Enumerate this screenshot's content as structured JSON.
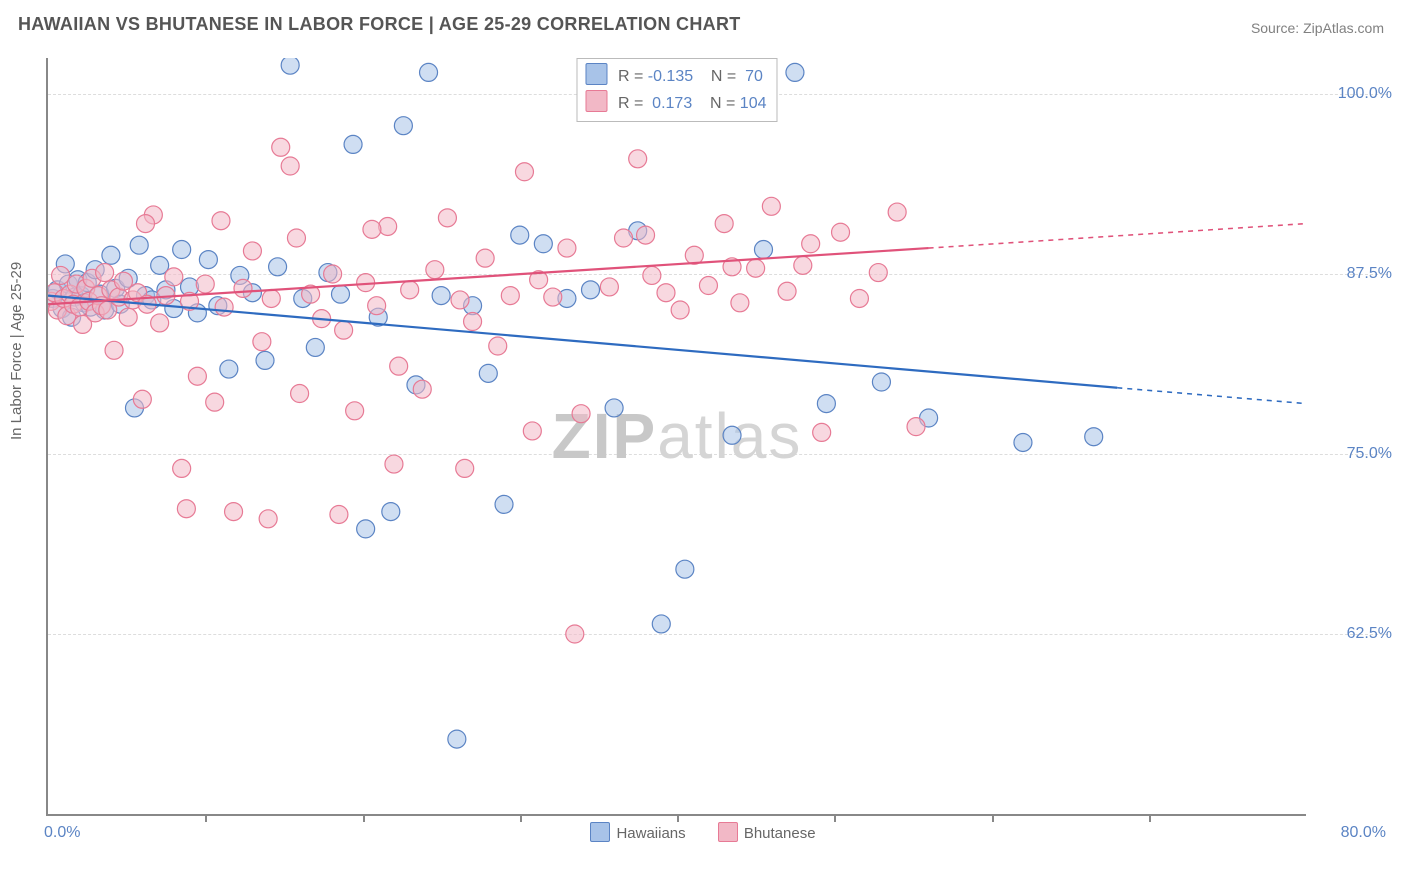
{
  "title": "HAWAIIAN VS BHUTANESE IN LABOR FORCE | AGE 25-29 CORRELATION CHART",
  "source_label": "Source: ",
  "source_name": "ZipAtlas.com",
  "y_axis_title": "In Labor Force | Age 25-29",
  "watermark_zip": "ZIP",
  "watermark_atlas": "atlas",
  "chart": {
    "type": "scatter",
    "plot_bg": "#ffffff",
    "border_color": "#888888",
    "grid_color": "#dddddd",
    "x_min": 0.0,
    "x_max": 80.0,
    "y_min": 50.0,
    "y_max": 102.5,
    "y_ticks": [
      62.5,
      75.0,
      87.5,
      100.0
    ],
    "y_tick_labels": [
      "62.5%",
      "75.0%",
      "87.5%",
      "100.0%"
    ],
    "x_tick_positions": [
      10,
      20,
      30,
      40,
      50,
      60,
      70
    ],
    "x_label_min": "0.0%",
    "x_label_max": "80.0%",
    "marker_radius": 9,
    "marker_opacity": 0.55,
    "marker_stroke_width": 1.2,
    "line_width": 2.2
  },
  "series": [
    {
      "name": "Hawaiians",
      "fill": "#a8c3e8",
      "stroke": "#5b84c4",
      "line_color": "#2e6bc0",
      "stats": {
        "r_label": "R =",
        "r_value": "-0.135",
        "n_label": "N =",
        "n_value": "70"
      },
      "regression": {
        "solid": {
          "x1": 0,
          "y1": 86.0,
          "x2": 68,
          "y2": 79.6
        },
        "dashed": {
          "x1": 68,
          "y1": 79.6,
          "x2": 80,
          "y2": 78.5
        }
      },
      "points": [
        [
          0.3,
          85.8
        ],
        [
          0.6,
          86.4
        ],
        [
          0.9,
          85.1
        ],
        [
          1.1,
          88.2
        ],
        [
          1.3,
          86.8
        ],
        [
          1.5,
          84.5
        ],
        [
          1.7,
          85.9
        ],
        [
          1.9,
          87.1
        ],
        [
          2.1,
          86.0
        ],
        [
          2.3,
          85.5
        ],
        [
          2.5,
          86.9
        ],
        [
          2.7,
          85.2
        ],
        [
          3.0,
          87.8
        ],
        [
          3.3,
          86.1
        ],
        [
          3.6,
          85.0
        ],
        [
          4.0,
          88.8
        ],
        [
          4.3,
          86.5
        ],
        [
          4.6,
          85.4
        ],
        [
          5.1,
          87.2
        ],
        [
          5.5,
          78.2
        ],
        [
          5.8,
          89.5
        ],
        [
          6.2,
          86.0
        ],
        [
          6.6,
          85.7
        ],
        [
          7.1,
          88.1
        ],
        [
          7.5,
          86.4
        ],
        [
          8.0,
          85.1
        ],
        [
          8.5,
          89.2
        ],
        [
          9.0,
          86.6
        ],
        [
          9.5,
          84.8
        ],
        [
          10.2,
          88.5
        ],
        [
          10.8,
          85.3
        ],
        [
          11.5,
          80.9
        ],
        [
          12.2,
          87.4
        ],
        [
          13.0,
          86.2
        ],
        [
          13.8,
          81.5
        ],
        [
          14.6,
          88.0
        ],
        [
          15.4,
          102.0
        ],
        [
          16.2,
          85.8
        ],
        [
          17.0,
          82.4
        ],
        [
          17.8,
          87.6
        ],
        [
          18.6,
          86.1
        ],
        [
          19.4,
          96.5
        ],
        [
          20.2,
          69.8
        ],
        [
          21.0,
          84.5
        ],
        [
          21.8,
          71.0
        ],
        [
          22.6,
          97.8
        ],
        [
          23.4,
          79.8
        ],
        [
          24.2,
          101.5
        ],
        [
          25.0,
          86.0
        ],
        [
          26.0,
          55.2
        ],
        [
          27.0,
          85.3
        ],
        [
          28.0,
          80.6
        ],
        [
          29.0,
          71.5
        ],
        [
          30.0,
          90.2
        ],
        [
          31.5,
          89.6
        ],
        [
          33.0,
          85.8
        ],
        [
          34.5,
          86.4
        ],
        [
          36.0,
          78.2
        ],
        [
          37.5,
          90.5
        ],
        [
          39.0,
          63.2
        ],
        [
          40.5,
          67.0
        ],
        [
          42.0,
          101.8
        ],
        [
          43.5,
          76.3
        ],
        [
          45.5,
          89.2
        ],
        [
          47.5,
          101.5
        ],
        [
          49.5,
          78.5
        ],
        [
          53.0,
          80.0
        ],
        [
          56.0,
          77.5
        ],
        [
          62.0,
          75.8
        ],
        [
          66.5,
          76.2
        ]
      ]
    },
    {
      "name": "Bhutanese",
      "fill": "#f2b8c6",
      "stroke": "#e77a95",
      "line_color": "#e0527a",
      "stats": {
        "r_label": "R =",
        "r_value": "0.173",
        "n_label": "N =",
        "n_value": "104"
      },
      "regression": {
        "solid": {
          "x1": 0,
          "y1": 85.4,
          "x2": 56,
          "y2": 89.3
        },
        "dashed": {
          "x1": 56,
          "y1": 89.3,
          "x2": 80,
          "y2": 91.0
        }
      },
      "points": [
        [
          0.2,
          85.6
        ],
        [
          0.4,
          86.2
        ],
        [
          0.6,
          85.0
        ],
        [
          0.8,
          87.4
        ],
        [
          1.0,
          85.8
        ],
        [
          1.2,
          84.6
        ],
        [
          1.4,
          86.1
        ],
        [
          1.6,
          85.4
        ],
        [
          1.8,
          86.8
        ],
        [
          2.0,
          85.2
        ],
        [
          2.2,
          84.0
        ],
        [
          2.4,
          86.5
        ],
        [
          2.6,
          85.6
        ],
        [
          2.8,
          87.2
        ],
        [
          3.0,
          84.8
        ],
        [
          3.2,
          86.0
        ],
        [
          3.4,
          85.3
        ],
        [
          3.6,
          87.6
        ],
        [
          3.8,
          85.0
        ],
        [
          4.0,
          86.4
        ],
        [
          4.2,
          82.2
        ],
        [
          4.5,
          85.9
        ],
        [
          4.8,
          87.0
        ],
        [
          5.1,
          84.5
        ],
        [
          5.4,
          85.7
        ],
        [
          5.7,
          86.2
        ],
        [
          6.0,
          78.8
        ],
        [
          6.3,
          85.4
        ],
        [
          6.7,
          91.6
        ],
        [
          7.1,
          84.1
        ],
        [
          7.5,
          86.0
        ],
        [
          8.0,
          87.3
        ],
        [
          8.5,
          74.0
        ],
        [
          9.0,
          85.6
        ],
        [
          9.5,
          80.4
        ],
        [
          10.0,
          86.8
        ],
        [
          10.6,
          78.6
        ],
        [
          11.2,
          85.2
        ],
        [
          11.8,
          71.0
        ],
        [
          12.4,
          86.5
        ],
        [
          13.0,
          89.1
        ],
        [
          13.6,
          82.8
        ],
        [
          14.2,
          85.8
        ],
        [
          14.8,
          96.3
        ],
        [
          15.4,
          95.0
        ],
        [
          16.0,
          79.2
        ],
        [
          16.7,
          86.1
        ],
        [
          17.4,
          84.4
        ],
        [
          18.1,
          87.5
        ],
        [
          18.8,
          83.6
        ],
        [
          19.5,
          78.0
        ],
        [
          20.2,
          86.9
        ],
        [
          20.9,
          85.3
        ],
        [
          21.6,
          90.8
        ],
        [
          22.3,
          81.1
        ],
        [
          23.0,
          86.4
        ],
        [
          23.8,
          79.5
        ],
        [
          24.6,
          87.8
        ],
        [
          25.4,
          91.4
        ],
        [
          26.2,
          85.7
        ],
        [
          27.0,
          84.2
        ],
        [
          27.8,
          88.6
        ],
        [
          28.6,
          82.5
        ],
        [
          29.4,
          86.0
        ],
        [
          30.3,
          94.6
        ],
        [
          31.2,
          87.1
        ],
        [
          32.1,
          85.9
        ],
        [
          33.0,
          89.3
        ],
        [
          33.9,
          77.8
        ],
        [
          34.8,
          101.3
        ],
        [
          35.7,
          86.6
        ],
        [
          36.6,
          90.0
        ],
        [
          37.5,
          95.5
        ],
        [
          38.4,
          87.4
        ],
        [
          39.3,
          86.2
        ],
        [
          40.2,
          85.0
        ],
        [
          41.1,
          88.8
        ],
        [
          42.0,
          86.7
        ],
        [
          43.0,
          91.0
        ],
        [
          44.0,
          85.5
        ],
        [
          45.0,
          87.9
        ],
        [
          46.0,
          92.2
        ],
        [
          47.0,
          86.3
        ],
        [
          48.0,
          88.1
        ],
        [
          49.2,
          76.5
        ],
        [
          50.4,
          90.4
        ],
        [
          51.6,
          85.8
        ],
        [
          52.8,
          87.6
        ],
        [
          54.0,
          91.8
        ],
        [
          55.2,
          76.9
        ],
        [
          33.5,
          62.5
        ],
        [
          8.8,
          71.2
        ],
        [
          14.0,
          70.5
        ],
        [
          18.5,
          70.8
        ],
        [
          22.0,
          74.3
        ],
        [
          26.5,
          74.0
        ],
        [
          30.8,
          76.6
        ],
        [
          6.2,
          91.0
        ],
        [
          11.0,
          91.2
        ],
        [
          15.8,
          90.0
        ],
        [
          20.6,
          90.6
        ],
        [
          38.0,
          90.2
        ],
        [
          43.5,
          88.0
        ],
        [
          48.5,
          89.6
        ]
      ]
    }
  ]
}
